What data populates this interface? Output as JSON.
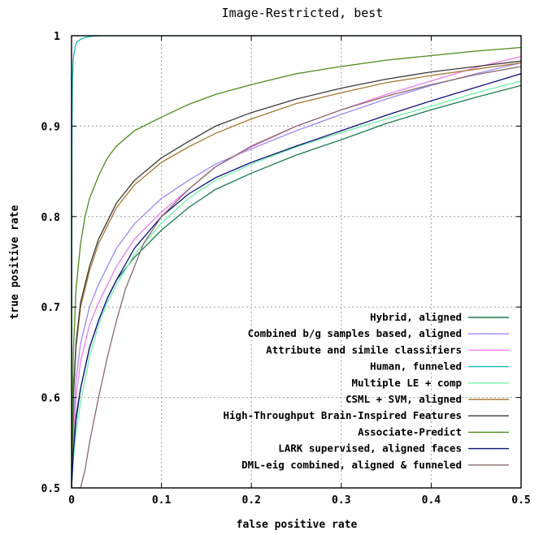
{
  "chart_data": {
    "type": "line",
    "title": "Image-Restricted, best",
    "xlabel": "false positive rate",
    "ylabel": "true positive rate",
    "xlim": [
      0,
      0.5
    ],
    "ylim": [
      0.5,
      1
    ],
    "x_ticks": [
      "0",
      "0.1",
      "0.2",
      "0.3",
      "0.4",
      "0.5"
    ],
    "y_ticks": [
      "0.5",
      "0.6",
      "0.7",
      "0.8",
      "0.9",
      "1"
    ],
    "x_tick_values": [
      0,
      0.1,
      0.2,
      0.3,
      0.4,
      0.5
    ],
    "y_tick_values": [
      0.5,
      0.6,
      0.7,
      0.8,
      0.9,
      1
    ],
    "grid": true,
    "legend_position": "bottom-right",
    "series": [
      {
        "name": "Hybrid, aligned",
        "color": "#1a7a4a",
        "x": [
          0,
          0.002,
          0.005,
          0.01,
          0.02,
          0.03,
          0.04,
          0.05,
          0.07,
          0.1,
          0.13,
          0.16,
          0.2,
          0.25,
          0.3,
          0.35,
          0.4,
          0.45,
          0.5
        ],
        "y": [
          0.5,
          0.55,
          0.58,
          0.61,
          0.655,
          0.685,
          0.71,
          0.73,
          0.755,
          0.785,
          0.81,
          0.83,
          0.848,
          0.868,
          0.885,
          0.903,
          0.918,
          0.932,
          0.945
        ]
      },
      {
        "name": "Combined b/g samples based, aligned",
        "color": "#9a8af2",
        "x": [
          0,
          0.002,
          0.005,
          0.01,
          0.02,
          0.03,
          0.04,
          0.05,
          0.07,
          0.1,
          0.13,
          0.16,
          0.2,
          0.25,
          0.3,
          0.35,
          0.4,
          0.45,
          0.5
        ],
        "y": [
          0.5,
          0.57,
          0.62,
          0.66,
          0.7,
          0.725,
          0.745,
          0.765,
          0.792,
          0.82,
          0.84,
          0.858,
          0.875,
          0.895,
          0.913,
          0.93,
          0.945,
          0.958,
          0.97
        ]
      },
      {
        "name": "Attribute and simile classifiers",
        "color": "#f07cf0",
        "x": [
          0,
          0.002,
          0.005,
          0.01,
          0.02,
          0.03,
          0.04,
          0.05,
          0.07,
          0.1,
          0.13,
          0.16,
          0.2,
          0.25,
          0.3,
          0.35,
          0.4,
          0.45,
          0.5
        ],
        "y": [
          0.5,
          0.56,
          0.6,
          0.64,
          0.68,
          0.705,
          0.725,
          0.745,
          0.775,
          0.805,
          0.83,
          0.855,
          0.877,
          0.9,
          0.918,
          0.935,
          0.95,
          0.965,
          0.977
        ]
      },
      {
        "name": "Human, funneled",
        "color": "#16b8b8",
        "x": [
          0,
          0.0005,
          0.001,
          0.002,
          0.004,
          0.006,
          0.01,
          0.015,
          0.02,
          0.03,
          0.5
        ],
        "y": [
          0.5,
          0.9,
          0.95,
          0.975,
          0.988,
          0.993,
          0.996,
          0.998,
          0.999,
          1.0,
          1.0
        ]
      },
      {
        "name": "Multiple LE + comp",
        "color": "#6ef0a8",
        "x": [
          0,
          0.002,
          0.005,
          0.01,
          0.02,
          0.03,
          0.04,
          0.05,
          0.07,
          0.1,
          0.13,
          0.16,
          0.2,
          0.25,
          0.3,
          0.35,
          0.4,
          0.45,
          0.5
        ],
        "y": [
          0.5,
          0.53,
          0.56,
          0.595,
          0.645,
          0.68,
          0.705,
          0.725,
          0.758,
          0.793,
          0.82,
          0.84,
          0.858,
          0.877,
          0.893,
          0.908,
          0.922,
          0.937,
          0.95
        ]
      },
      {
        "name": "CSML + SVM, aligned",
        "color": "#a87830",
        "x": [
          0,
          0.002,
          0.005,
          0.01,
          0.02,
          0.03,
          0.04,
          0.05,
          0.07,
          0.1,
          0.13,
          0.16,
          0.2,
          0.25,
          0.3,
          0.35,
          0.4,
          0.45,
          0.5
        ],
        "y": [
          0.5,
          0.6,
          0.655,
          0.7,
          0.74,
          0.77,
          0.79,
          0.81,
          0.835,
          0.86,
          0.877,
          0.892,
          0.908,
          0.925,
          0.937,
          0.948,
          0.956,
          0.963,
          0.97
        ]
      },
      {
        "name": "High-Throughput Brain-Inspired Features",
        "color": "#3a3a3a",
        "x": [
          0,
          0.002,
          0.005,
          0.01,
          0.02,
          0.03,
          0.04,
          0.05,
          0.07,
          0.1,
          0.13,
          0.16,
          0.2,
          0.25,
          0.3,
          0.35,
          0.4,
          0.45,
          0.5
        ],
        "y": [
          0.5,
          0.6,
          0.66,
          0.705,
          0.745,
          0.775,
          0.795,
          0.815,
          0.84,
          0.865,
          0.883,
          0.9,
          0.915,
          0.93,
          0.942,
          0.952,
          0.96,
          0.966,
          0.972
        ]
      },
      {
        "name": "Associate-Predict",
        "color": "#4e8a18",
        "x": [
          0,
          0.002,
          0.005,
          0.01,
          0.015,
          0.02,
          0.03,
          0.04,
          0.05,
          0.07,
          0.1,
          0.13,
          0.16,
          0.2,
          0.25,
          0.3,
          0.35,
          0.4,
          0.45,
          0.5
        ],
        "y": [
          0.5,
          0.65,
          0.72,
          0.77,
          0.8,
          0.82,
          0.845,
          0.865,
          0.878,
          0.895,
          0.91,
          0.924,
          0.935,
          0.946,
          0.958,
          0.966,
          0.973,
          0.978,
          0.983,
          0.987
        ]
      },
      {
        "name": "LARK supervised, aligned faces",
        "color": "#10107a",
        "x": [
          0,
          0.002,
          0.005,
          0.01,
          0.02,
          0.03,
          0.04,
          0.05,
          0.07,
          0.1,
          0.13,
          0.16,
          0.2,
          0.25,
          0.3,
          0.35,
          0.4,
          0.45,
          0.5
        ],
        "y": [
          0.5,
          0.54,
          0.575,
          0.61,
          0.655,
          0.685,
          0.71,
          0.73,
          0.765,
          0.8,
          0.825,
          0.843,
          0.86,
          0.878,
          0.895,
          0.912,
          0.928,
          0.943,
          0.958
        ]
      },
      {
        "name": "DML-eig combined, aligned & funneled",
        "color": "#8a6a6a",
        "x": [
          0,
          0.005,
          0.01,
          0.015,
          0.02,
          0.03,
          0.04,
          0.05,
          0.06,
          0.08,
          0.1,
          0.13,
          0.16,
          0.2,
          0.25,
          0.3,
          0.35,
          0.4,
          0.45,
          0.5
        ],
        "y": [
          0.5,
          0.5,
          0.5,
          0.52,
          0.55,
          0.6,
          0.645,
          0.685,
          0.72,
          0.77,
          0.8,
          0.83,
          0.855,
          0.878,
          0.9,
          0.918,
          0.933,
          0.946,
          0.957,
          0.966
        ]
      }
    ]
  }
}
